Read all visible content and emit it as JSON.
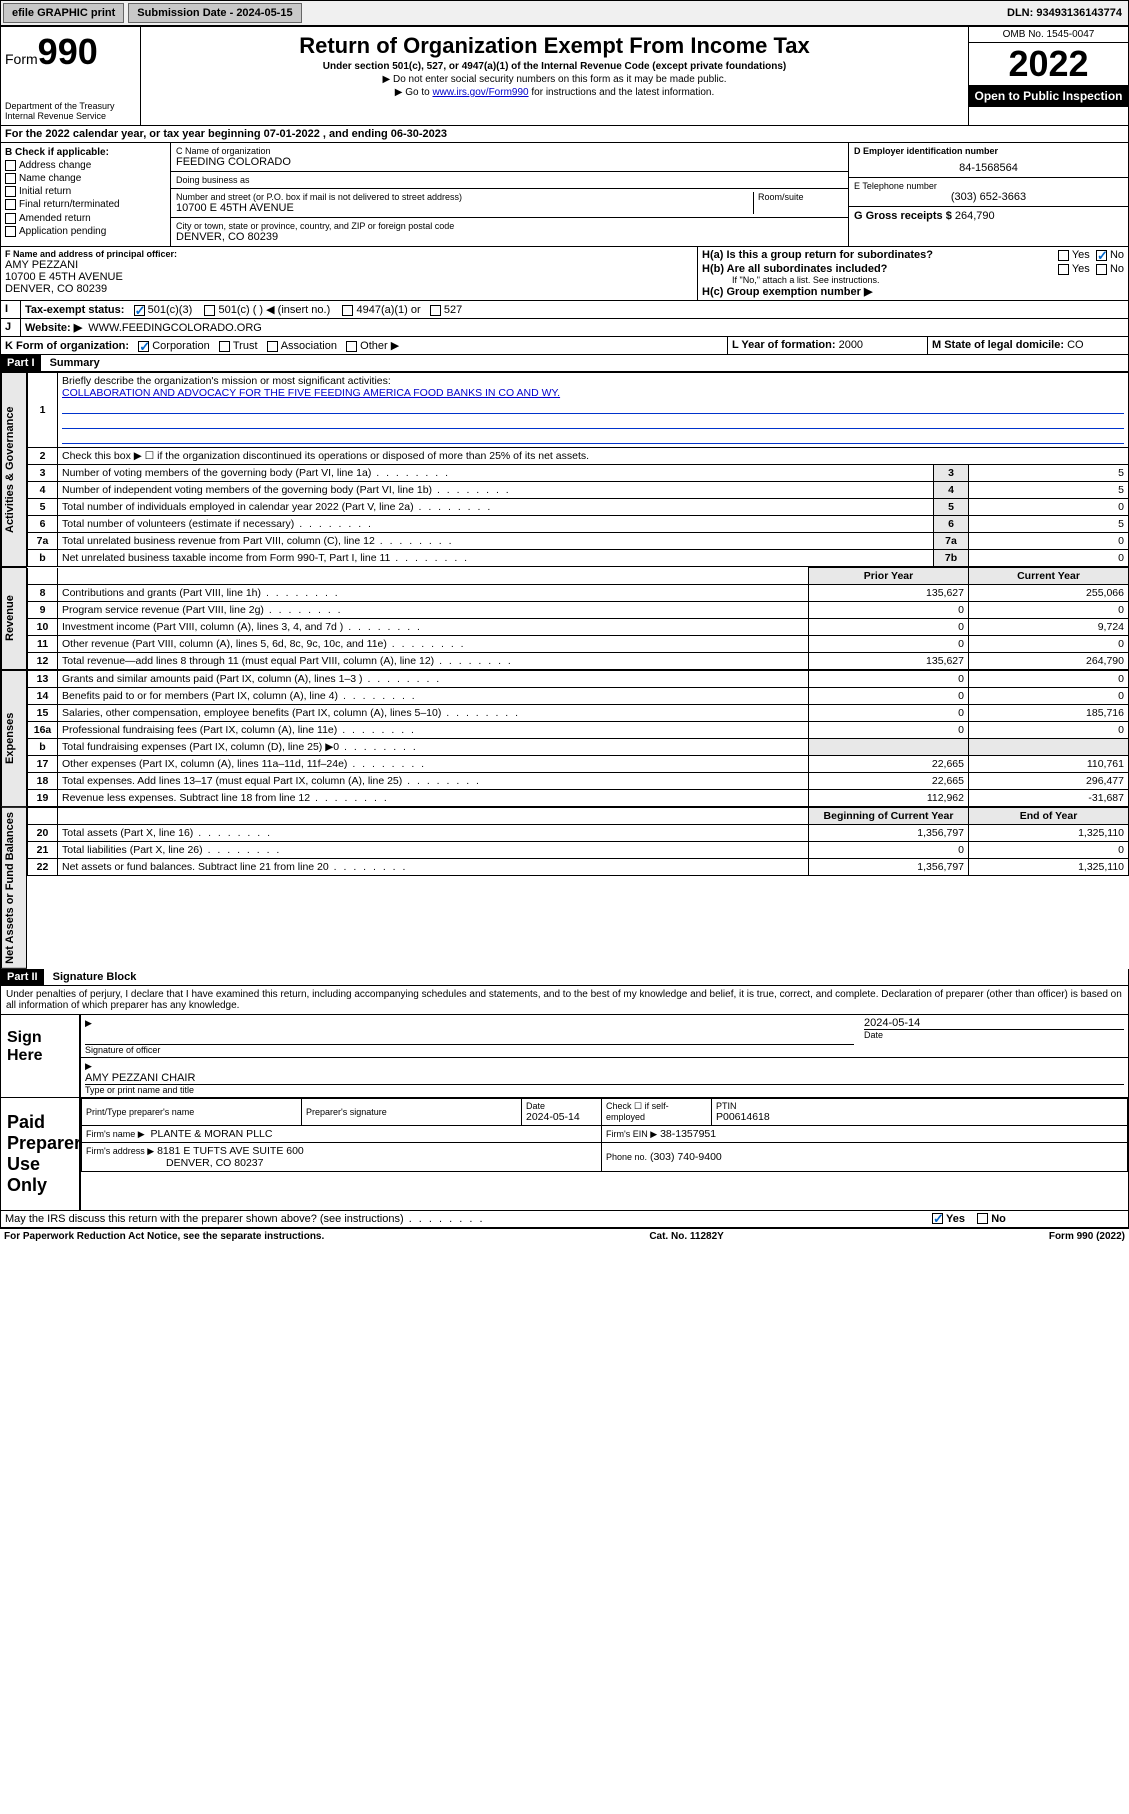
{
  "topbar": {
    "efile": "efile GRAPHIC print",
    "submission_label": "Submission Date - 2024-05-15",
    "dln": "DLN: 93493136143774"
  },
  "header": {
    "form_word": "Form",
    "form_no": "990",
    "dept": "Department of the Treasury",
    "irs": "Internal Revenue Service",
    "title": "Return of Organization Exempt From Income Tax",
    "sub": "Under section 501(c), 527, or 4947(a)(1) of the Internal Revenue Code (except private foundations)",
    "note1": "▶ Do not enter social security numbers on this form as it may be made public.",
    "note2_pre": "▶ Go to ",
    "note2_link": "www.irs.gov/Form990",
    "note2_post": " for instructions and the latest information.",
    "omb": "OMB No. 1545-0047",
    "year": "2022",
    "open": "Open to Public Inspection"
  },
  "A": {
    "line": "For the 2022 calendar year, or tax year beginning 07-01-2022   , and ending 06-30-2023"
  },
  "B": {
    "hdr": "B Check if applicable:",
    "items": [
      "Address change",
      "Name change",
      "Initial return",
      "Final return/terminated",
      "Amended return",
      "Application pending"
    ]
  },
  "C": {
    "name_lbl": "C Name of organization",
    "name": "FEEDING COLORADO",
    "dba_lbl": "Doing business as",
    "dba": "",
    "street_lbl": "Number and street (or P.O. box if mail is not delivered to street address)",
    "room_lbl": "Room/suite",
    "street": "10700 E 45TH AVENUE",
    "city_lbl": "City or town, state or province, country, and ZIP or foreign postal code",
    "city": "DENVER, CO  80239"
  },
  "D": {
    "lbl": "D Employer identification number",
    "val": "84-1568564"
  },
  "E": {
    "lbl": "E Telephone number",
    "val": "(303) 652-3663"
  },
  "G": {
    "lbl": "G Gross receipts $",
    "val": "264,790"
  },
  "F": {
    "lbl": "F  Name and address of principal officer:",
    "name": "AMY PEZZANI",
    "addr1": "10700 E 45TH AVENUE",
    "addr2": "DENVER, CO  80239"
  },
  "H": {
    "a": "H(a)  Is this a group return for subordinates?",
    "a_yes": "Yes",
    "a_no": "No",
    "b": "H(b)  Are all subordinates included?",
    "b_note": "If \"No,\" attach a list. See instructions.",
    "c": "H(c)  Group exemption number ▶"
  },
  "I": {
    "lbl": "Tax-exempt status:",
    "o1": "501(c)(3)",
    "o2": "501(c) (  ) ◀ (insert no.)",
    "o3": "4947(a)(1) or",
    "o4": "527"
  },
  "J": {
    "lbl": "Website: ▶",
    "val": "WWW.FEEDINGCOLORADO.ORG"
  },
  "K": {
    "lbl": "K Form of organization:",
    "o1": "Corporation",
    "o2": "Trust",
    "o3": "Association",
    "o4": "Other ▶"
  },
  "L": {
    "lbl": "L Year of formation:",
    "val": "2000"
  },
  "M": {
    "lbl": "M State of legal domicile:",
    "val": "CO"
  },
  "part1": {
    "bar": "Part I",
    "title": "Summary",
    "q1_lbl": "1",
    "q1": "Briefly describe the organization's mission or most significant activities:",
    "q1_val": "COLLABORATION AND ADVOCACY FOR THE FIVE FEEDING AMERICA FOOD BANKS IN CO AND WY.",
    "q2_lbl": "2",
    "q2": "Check this box ▶ ☐  if the organization discontinued its operations or disposed of more than 25% of its net assets.",
    "lines_gov": [
      {
        "n": "3",
        "t": "Number of voting members of the governing body (Part VI, line 1a)",
        "box": "3",
        "v": "5"
      },
      {
        "n": "4",
        "t": "Number of independent voting members of the governing body (Part VI, line 1b)",
        "box": "4",
        "v": "5"
      },
      {
        "n": "5",
        "t": "Total number of individuals employed in calendar year 2022 (Part V, line 2a)",
        "box": "5",
        "v": "0"
      },
      {
        "n": "6",
        "t": "Total number of volunteers (estimate if necessary)",
        "box": "6",
        "v": "5"
      },
      {
        "n": "7a",
        "t": "Total unrelated business revenue from Part VIII, column (C), line 12",
        "box": "7a",
        "v": "0"
      },
      {
        "n": "b",
        "t": "Net unrelated business taxable income from Form 990-T, Part I, line 11",
        "box": "7b",
        "v": "0"
      }
    ],
    "col_prior": "Prior Year",
    "col_curr": "Current Year",
    "rev": [
      {
        "n": "8",
        "t": "Contributions and grants (Part VIII, line 1h)",
        "p": "135,627",
        "c": "255,066"
      },
      {
        "n": "9",
        "t": "Program service revenue (Part VIII, line 2g)",
        "p": "0",
        "c": "0"
      },
      {
        "n": "10",
        "t": "Investment income (Part VIII, column (A), lines 3, 4, and 7d )",
        "p": "0",
        "c": "9,724"
      },
      {
        "n": "11",
        "t": "Other revenue (Part VIII, column (A), lines 5, 6d, 8c, 9c, 10c, and 11e)",
        "p": "0",
        "c": "0"
      },
      {
        "n": "12",
        "t": "Total revenue—add lines 8 through 11 (must equal Part VIII, column (A), line 12)",
        "p": "135,627",
        "c": "264,790"
      }
    ],
    "exp": [
      {
        "n": "13",
        "t": "Grants and similar amounts paid (Part IX, column (A), lines 1–3 )",
        "p": "0",
        "c": "0"
      },
      {
        "n": "14",
        "t": "Benefits paid to or for members (Part IX, column (A), line 4)",
        "p": "0",
        "c": "0"
      },
      {
        "n": "15",
        "t": "Salaries, other compensation, employee benefits (Part IX, column (A), lines 5–10)",
        "p": "0",
        "c": "185,716"
      },
      {
        "n": "16a",
        "t": "Professional fundraising fees (Part IX, column (A), line 11e)",
        "p": "0",
        "c": "0"
      },
      {
        "n": "b",
        "t": "Total fundraising expenses (Part IX, column (D), line 25) ▶0",
        "p": "",
        "c": ""
      },
      {
        "n": "17",
        "t": "Other expenses (Part IX, column (A), lines 11a–11d, 11f–24e)",
        "p": "22,665",
        "c": "110,761"
      },
      {
        "n": "18",
        "t": "Total expenses. Add lines 13–17 (must equal Part IX, column (A), line 25)",
        "p": "22,665",
        "c": "296,477"
      },
      {
        "n": "19",
        "t": "Revenue less expenses. Subtract line 18 from line 12",
        "p": "112,962",
        "c": "-31,687"
      }
    ],
    "col_beg": "Beginning of Current Year",
    "col_end": "End of Year",
    "net": [
      {
        "n": "20",
        "t": "Total assets (Part X, line 16)",
        "p": "1,356,797",
        "c": "1,325,110"
      },
      {
        "n": "21",
        "t": "Total liabilities (Part X, line 26)",
        "p": "0",
        "c": "0"
      },
      {
        "n": "22",
        "t": "Net assets or fund balances. Subtract line 21 from line 20",
        "p": "1,356,797",
        "c": "1,325,110"
      }
    ]
  },
  "part2": {
    "bar": "Part II",
    "title": "Signature Block",
    "decl": "Under penalties of perjury, I declare that I have examined this return, including accompanying schedules and statements, and to the best of my knowledge and belief, it is true, correct, and complete. Declaration of preparer (other than officer) is based on all information of which preparer has any knowledge."
  },
  "sign": {
    "here": "Sign Here",
    "sig_officer": "Signature of officer",
    "date": "Date",
    "date_val": "2024-05-14",
    "name": "AMY PEZZANI CHAIR",
    "name_lbl": "Type or print name and title"
  },
  "paid": {
    "title": "Paid Preparer Use Only",
    "c1": "Print/Type preparer's name",
    "c2": "Preparer's signature",
    "c3": "Date",
    "c3v": "2024-05-14",
    "c4": "Check ☐ if self-employed",
    "c5": "PTIN",
    "c5v": "P00614618",
    "firm_lbl": "Firm's name     ▶",
    "firm": "PLANTE & MORAN PLLC",
    "ein_lbl": "Firm's EIN ▶",
    "ein": "38-1357951",
    "addr_lbl": "Firm's address ▶",
    "addr1": "8181 E TUFTS AVE SUITE 600",
    "addr2": "DENVER, CO  80237",
    "phone_lbl": "Phone no.",
    "phone": "(303) 740-9400"
  },
  "discuss": {
    "q": "May the IRS discuss this return with the preparer shown above? (see instructions)",
    "yes": "Yes",
    "no": "No"
  },
  "footer": {
    "l": "For Paperwork Reduction Act Notice, see the separate instructions.",
    "m": "Cat. No. 11282Y",
    "r": "Form 990 (2022)"
  },
  "vlabels": {
    "gov": "Activities & Governance",
    "rev": "Revenue",
    "exp": "Expenses",
    "net": "Net Assets or Fund Balances"
  }
}
